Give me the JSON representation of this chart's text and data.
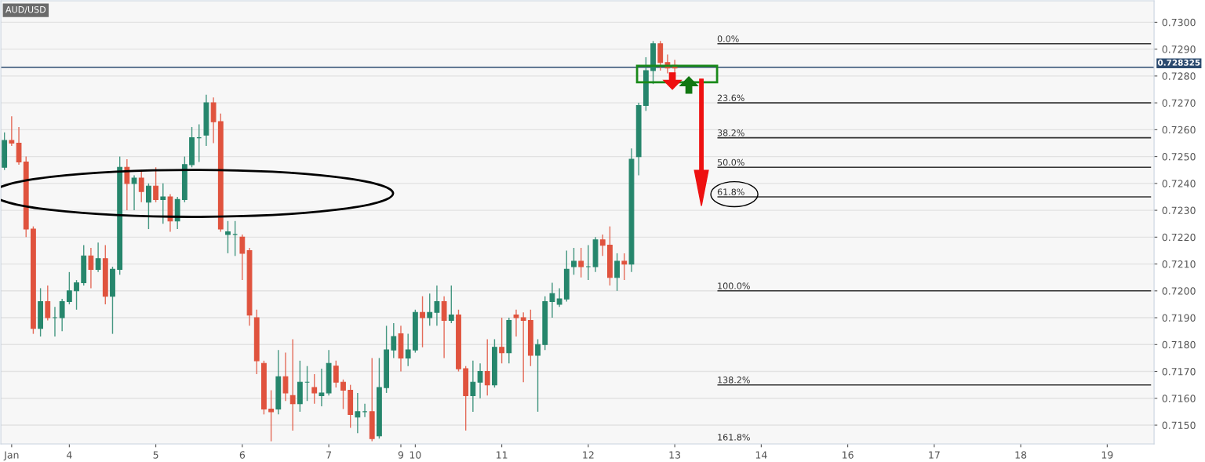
{
  "chart_data": {
    "type": "candlestick",
    "title": "AUD/USD",
    "categories": [
      null,
      "Jan",
      null,
      null,
      null,
      null,
      null,
      null,
      null,
      "4",
      null,
      null,
      null,
      null,
      null,
      null,
      null,
      null,
      null,
      null,
      null,
      "5",
      null,
      null,
      null,
      null,
      null,
      null,
      null,
      null,
      null,
      null,
      null,
      "6",
      null,
      null,
      null,
      null,
      null,
      null,
      null,
      null,
      null,
      null,
      null,
      "7",
      null,
      null,
      null,
      null,
      null,
      null,
      null,
      null,
      null,
      "9",
      null,
      "10",
      null,
      null,
      null,
      null,
      null,
      null,
      null,
      null,
      null,
      null,
      null,
      "11",
      null,
      null,
      null,
      null,
      null,
      null,
      null,
      null,
      null,
      null,
      null,
      "12",
      null,
      null,
      null,
      null,
      null,
      null,
      null,
      null,
      null,
      null,
      null,
      "13",
      null,
      null,
      null,
      null,
      null,
      null,
      null,
      null,
      null,
      null,
      null,
      "14",
      null,
      null,
      null,
      null,
      null,
      null,
      null,
      null,
      null,
      null,
      null,
      "16",
      null,
      null,
      null,
      null,
      null,
      null,
      null,
      null,
      null,
      null,
      null,
      "17",
      null,
      null,
      null,
      null,
      null,
      null,
      null,
      null,
      null,
      null,
      null,
      "18",
      null,
      null,
      null,
      null,
      null,
      null,
      null,
      null,
      null,
      null,
      null,
      "19",
      null,
      null,
      null,
      null,
      null,
      null
    ],
    "ohlc": [
      [
        0.7246,
        0.7259,
        0.7245,
        0.7256
      ],
      [
        0.7256,
        0.7265,
        0.7254,
        0.7255
      ],
      [
        0.7255,
        0.7261,
        0.7247,
        0.7248
      ],
      [
        0.7248,
        0.725,
        0.722,
        0.7223
      ],
      [
        0.7223,
        0.7224,
        0.7184,
        0.7186
      ],
      [
        0.7186,
        0.7201,
        0.7183,
        0.7196
      ],
      [
        0.7196,
        0.7202,
        0.7189,
        0.719
      ],
      [
        0.719,
        0.7194,
        0.7183,
        0.719
      ],
      [
        0.719,
        0.7197,
        0.7185,
        0.7196
      ],
      [
        0.7196,
        0.7207,
        0.7195,
        0.72
      ],
      [
        0.72,
        0.7204,
        0.7193,
        0.7203
      ],
      [
        0.7203,
        0.7217,
        0.7202,
        0.7213
      ],
      [
        0.7213,
        0.7216,
        0.7201,
        0.7208
      ],
      [
        0.7208,
        0.7218,
        0.7207,
        0.7212
      ],
      [
        0.7212,
        0.7217,
        0.7195,
        0.7198
      ],
      [
        0.7198,
        0.7209,
        0.7184,
        0.7208
      ],
      [
        0.7208,
        0.725,
        0.7206,
        0.7246
      ],
      [
        0.7246,
        0.7249,
        0.723,
        0.724
      ],
      [
        0.724,
        0.7243,
        0.723,
        0.7242
      ],
      [
        0.7242,
        0.7245,
        0.7233,
        0.7237
      ],
      [
        0.7233,
        0.724,
        0.7223,
        0.7239
      ],
      [
        0.7239,
        0.7246,
        0.7233,
        0.7234
      ],
      [
        0.7234,
        0.724,
        0.7225,
        0.7235
      ],
      [
        0.7235,
        0.7236,
        0.7222,
        0.7226
      ],
      [
        0.7226,
        0.7235,
        0.7223,
        0.7234
      ],
      [
        0.7234,
        0.725,
        0.7233,
        0.7247
      ],
      [
        0.7247,
        0.7261,
        0.7246,
        0.7257
      ],
      [
        0.7257,
        0.7262,
        0.7248,
        0.7257
      ],
      [
        0.7258,
        0.7273,
        0.7254,
        0.727
      ],
      [
        0.727,
        0.7272,
        0.7255,
        0.7263
      ],
      [
        0.7263,
        0.7266,
        0.7222,
        0.7223
      ],
      [
        0.7221,
        0.7226,
        0.7214,
        0.7222
      ],
      [
        0.7221,
        0.7226,
        0.7213,
        0.7221
      ],
      [
        0.722,
        0.7221,
        0.7204,
        0.7214
      ],
      [
        0.7215,
        0.7216,
        0.7187,
        0.7191
      ],
      [
        0.719,
        0.7193,
        0.7169,
        0.7174
      ],
      [
        0.7173,
        0.7174,
        0.7154,
        0.7156
      ],
      [
        0.7156,
        0.7163,
        0.7144,
        0.7155
      ],
      [
        0.7156,
        0.7178,
        0.7154,
        0.7168
      ],
      [
        0.7168,
        0.7177,
        0.7159,
        0.7162
      ],
      [
        0.7161,
        0.7182,
        0.7148,
        0.7158
      ],
      [
        0.7158,
        0.7174,
        0.7155,
        0.7166
      ],
      [
        0.7166,
        0.7172,
        0.7159,
        0.7166
      ],
      [
        0.7164,
        0.7169,
        0.7158,
        0.7162
      ],
      [
        0.7161,
        0.7171,
        0.7157,
        0.7162
      ],
      [
        0.7162,
        0.7178,
        0.7161,
        0.7173
      ],
      [
        0.7172,
        0.7174,
        0.7164,
        0.7166
      ],
      [
        0.7166,
        0.7167,
        0.7156,
        0.7163
      ],
      [
        0.7163,
        0.7165,
        0.7149,
        0.7154
      ],
      [
        0.7153,
        0.7162,
        0.7147,
        0.7155
      ],
      [
        0.7155,
        0.7158,
        0.7153,
        0.7155
      ],
      [
        0.7155,
        0.7175,
        0.7144,
        0.7145
      ],
      [
        0.7146,
        0.7175,
        0.7145,
        0.7164
      ],
      [
        0.7164,
        0.7187,
        0.7162,
        0.7178
      ],
      [
        0.7178,
        0.7188,
        0.7175,
        0.7183
      ],
      [
        0.7184,
        0.7187,
        0.717,
        0.7175
      ],
      [
        0.7175,
        0.7184,
        0.7172,
        0.7178
      ],
      [
        0.7178,
        0.7193,
        0.7177,
        0.7192
      ],
      [
        0.7192,
        0.7198,
        0.7179,
        0.719
      ],
      [
        0.719,
        0.7199,
        0.7187,
        0.7192
      ],
      [
        0.7192,
        0.7202,
        0.7187,
        0.7196
      ],
      [
        0.7196,
        0.7198,
        0.7175,
        0.7189
      ],
      [
        0.7189,
        0.7202,
        0.7188,
        0.7191
      ],
      [
        0.7191,
        0.7193,
        0.717,
        0.7171
      ],
      [
        0.7171,
        0.7172,
        0.7148,
        0.7161
      ],
      [
        0.7161,
        0.7174,
        0.7155,
        0.7166
      ],
      [
        0.7166,
        0.7173,
        0.716,
        0.717
      ],
      [
        0.717,
        0.7182,
        0.7161,
        0.7165
      ],
      [
        0.7165,
        0.7182,
        0.7164,
        0.7179
      ],
      [
        0.7179,
        0.719,
        0.7173,
        0.7177
      ],
      [
        0.7177,
        0.719,
        0.7173,
        0.7189
      ],
      [
        0.7191,
        0.7193,
        0.7183,
        0.719
      ],
      [
        0.719,
        0.7192,
        0.7166,
        0.7189
      ],
      [
        0.7189,
        0.7193,
        0.7172,
        0.7176
      ],
      [
        0.7176,
        0.7182,
        0.7155,
        0.718
      ],
      [
        0.718,
        0.7198,
        0.7178,
        0.7196
      ],
      [
        0.7196,
        0.7203,
        0.719,
        0.7199
      ],
      [
        0.7195,
        0.7201,
        0.7194,
        0.7197
      ],
      [
        0.7197,
        0.7215,
        0.7196,
        0.7208
      ],
      [
        0.7209,
        0.7216,
        0.7206,
        0.7211
      ],
      [
        0.7211,
        0.7216,
        0.7205,
        0.7209
      ],
      [
        0.7209,
        0.7217,
        0.7204,
        0.7209
      ],
      [
        0.7209,
        0.722,
        0.7207,
        0.7219
      ],
      [
        0.7219,
        0.7221,
        0.7213,
        0.7217
      ],
      [
        0.7217,
        0.7224,
        0.7202,
        0.7205
      ],
      [
        0.7205,
        0.7214,
        0.72,
        0.7211
      ],
      [
        0.7211,
        0.7214,
        0.7204,
        0.721
      ],
      [
        0.721,
        0.7253,
        0.7207,
        0.7249
      ],
      [
        0.725,
        0.727,
        0.7243,
        0.7269
      ],
      [
        0.7269,
        0.7287,
        0.7267,
        0.7282
      ],
      [
        0.7282,
        0.7293,
        0.7277,
        0.7292
      ],
      [
        0.7292,
        0.7293,
        0.7282,
        0.7285
      ],
      [
        0.7285,
        0.7288,
        0.7281,
        0.7283
      ],
      [
        0.7284,
        0.7286,
        0.7281,
        0.7283
      ],
      null,
      null,
      null,
      null,
      null,
      null,
      null,
      null,
      null,
      null,
      null,
      null,
      null,
      null,
      null,
      null,
      null,
      null,
      null,
      null,
      null,
      null,
      null,
      null,
      null,
      null,
      null,
      null,
      null,
      null,
      null,
      null,
      null,
      null,
      null,
      null,
      null,
      null,
      null,
      null,
      null,
      null,
      null,
      null,
      null,
      null,
      null,
      null,
      null,
      null,
      null,
      null,
      null,
      null,
      null,
      null,
      null,
      null,
      null,
      null,
      null,
      null,
      null,
      null,
      null,
      null
    ],
    "colors": [
      "#26866c",
      "#e0533e",
      "#e0533e",
      "#e0533e",
      "#e0533e",
      "#26866c",
      "#e0533e",
      "#26866c",
      "#26866c",
      "#26866c",
      "#26866c",
      "#26866c",
      "#e0533e",
      "#26866c",
      "#e0533e",
      "#26866c",
      "#26866c",
      "#e0533e",
      "#26866c",
      "#e0533e",
      "#26866c",
      "#e0533e",
      "#26866c",
      "#e0533e",
      "#26866c",
      "#26866c",
      "#26866c",
      "#26866c",
      "#26866c",
      "#e0533e",
      "#e0533e",
      "#26866c",
      "#26866c",
      "#e0533e",
      "#e0533e",
      "#e0533e",
      "#e0533e",
      "#e0533e",
      "#26866c",
      "#e0533e",
      "#e0533e",
      "#26866c",
      "#26866c",
      "#e0533e",
      "#26866c",
      "#26866c",
      "#e0533e",
      "#e0533e",
      "#e0533e",
      "#26866c",
      "#26866c",
      "#e0533e",
      "#26866c",
      "#26866c",
      "#26866c",
      "#e0533e",
      "#26866c",
      "#26866c",
      "#e0533e",
      "#26866c",
      "#26866c",
      "#e0533e",
      "#26866c",
      "#e0533e",
      "#e0533e",
      "#26866c",
      "#26866c",
      "#e0533e",
      "#26866c",
      "#e0533e",
      "#26866c",
      "#e0533e",
      "#e0533e",
      "#e0533e",
      "#26866c",
      "#26866c",
      "#26866c",
      "#26866c",
      "#26866c",
      "#26866c",
      "#e0533e",
      "#26866c",
      "#26866c",
      "#e0533e",
      "#e0533e",
      "#26866c",
      "#e0533e",
      "#26866c",
      "#26866c",
      "#26866c",
      "#26866c",
      "#e0533e",
      "#e0533e",
      "#e0533e",
      null,
      null,
      null,
      null,
      null,
      null,
      null,
      null,
      null,
      null,
      null,
      null,
      null,
      null,
      null,
      null,
      null,
      null,
      null,
      null,
      null,
      null,
      null,
      null,
      null,
      null,
      null,
      null,
      null,
      null,
      null,
      null,
      null,
      null,
      null,
      null,
      null,
      null,
      null,
      null,
      null,
      null,
      null,
      null,
      null,
      null,
      null,
      null,
      null,
      null,
      null,
      null,
      null,
      null,
      null,
      null,
      null,
      null,
      null,
      null,
      null,
      null,
      null,
      null,
      null,
      null
    ],
    "series": [
      {
        "type": "line",
        "color": "#333333",
        "values": [
          null,
          null,
          null,
          null,
          null,
          null,
          null,
          null,
          null,
          null,
          null,
          null,
          null,
          null,
          null,
          null,
          null,
          null,
          null,
          null,
          null,
          null,
          null,
          null,
          null,
          null,
          null,
          null,
          null,
          null,
          null,
          null,
          null,
          null,
          null,
          null,
          null,
          null,
          null,
          null,
          null,
          null,
          null,
          null,
          null,
          null,
          null,
          null,
          null,
          null,
          null,
          null,
          null,
          null,
          null,
          null,
          null,
          null,
          null,
          null,
          null,
          null,
          null,
          null,
          null,
          null,
          null,
          null,
          null,
          null,
          null,
          null,
          null,
          null,
          null,
          null,
          null,
          null,
          null,
          null,
          null,
          null,
          null,
          null,
          null,
          null,
          null,
          null,
          null,
          null,
          null,
          null,
          null,
          null,
          null,
          null,
          null,
          null,
          null,
          0.7292,
          0.7292,
          0.7292,
          0.7292,
          0.7292,
          0.7292,
          0.7292,
          0.7292,
          0.7292,
          0.7292,
          0.7292,
          0.7292,
          0.7292,
          0.7292,
          0.7292,
          0.7292,
          0.7292,
          0.7292,
          0.7292,
          0.7292,
          0.7292,
          0.7292,
          0.7292,
          0.7292,
          0.7292,
          0.7292,
          0.7292,
          0.7292,
          0.7292,
          0.7292,
          0.7292,
          0.7292,
          0.7292,
          0.7292,
          0.7292,
          0.7292,
          0.7292,
          0.7292,
          0.7292,
          0.7292,
          0.7292,
          0.7292,
          0.7292,
          0.7292,
          0.7292,
          0.7292,
          0.7292,
          0.7292,
          0.7292,
          0.7292,
          0.7292,
          0.7292,
          0.7292,
          0.7292,
          0.7292,
          0.7292,
          0.7292,
          0.7292,
          0.7292,
          0.7292,
          0.7292
        ]
      },
      {
        "type": "line",
        "color": "#333333",
        "values": [
          null,
          null,
          null,
          null,
          null,
          null,
          null,
          null,
          null,
          null,
          null,
          null,
          null,
          null,
          null,
          null,
          null,
          null,
          null,
          null,
          null,
          null,
          null,
          null,
          null,
          null,
          null,
          null,
          null,
          null,
          null,
          null,
          null,
          null,
          null,
          null,
          null,
          null,
          null,
          null,
          null,
          null,
          null,
          null,
          null,
          null,
          null,
          null,
          null,
          null,
          null,
          null,
          null,
          null,
          null,
          null,
          null,
          null,
          null,
          null,
          null,
          null,
          null,
          null,
          null,
          null,
          null,
          null,
          null,
          null,
          null,
          null,
          null,
          null,
          null,
          null,
          null,
          null,
          null,
          null,
          null,
          null,
          null,
          null,
          null,
          null,
          null,
          null,
          null,
          null,
          null,
          null,
          null,
          null,
          null,
          null,
          null,
          null,
          null,
          0.727,
          0.727,
          0.727,
          0.727,
          0.727,
          0.727,
          0.727,
          0.727,
          0.727,
          0.727,
          0.727,
          0.727,
          0.727,
          0.727,
          0.727,
          0.727,
          0.727,
          0.727,
          0.727,
          0.727,
          0.727,
          0.727,
          0.727,
          0.727,
          0.727,
          0.727,
          0.727,
          0.727,
          0.727,
          0.727,
          0.727,
          0.727,
          0.727,
          0.727,
          0.727,
          0.727,
          0.727,
          0.727,
          0.727,
          0.727,
          0.727,
          0.727,
          0.727,
          0.727,
          0.727,
          0.727,
          0.727,
          0.727,
          0.727,
          0.727,
          0.727,
          0.727,
          0.727,
          0.727,
          0.727,
          0.727,
          0.727,
          0.727,
          0.727,
          0.727,
          0.727
        ]
      },
      {
        "type": "line",
        "color": "#333333",
        "values": [
          null,
          null,
          null,
          null,
          null,
          null,
          null,
          null,
          null,
          null,
          null,
          null,
          null,
          null,
          null,
          null,
          null,
          null,
          null,
          null,
          null,
          null,
          null,
          null,
          null,
          null,
          null,
          null,
          null,
          null,
          null,
          null,
          null,
          null,
          null,
          null,
          null,
          null,
          null,
          null,
          null,
          null,
          null,
          null,
          null,
          null,
          null,
          null,
          null,
          null,
          null,
          null,
          null,
          null,
          null,
          null,
          null,
          null,
          null,
          null,
          null,
          null,
          null,
          null,
          null,
          null,
          null,
          null,
          null,
          null,
          null,
          null,
          null,
          null,
          null,
          null,
          null,
          null,
          null,
          null,
          null,
          null,
          null,
          null,
          null,
          null,
          null,
          null,
          null,
          null,
          null,
          null,
          null,
          null,
          null,
          null,
          null,
          null,
          null,
          0.7257,
          0.7257,
          0.7257,
          0.7257,
          0.7257,
          0.7257,
          0.7257,
          0.7257,
          0.7257,
          0.7257,
          0.7257,
          0.7257,
          0.7257,
          0.7257,
          0.7257,
          0.7257,
          0.7257,
          0.7257,
          0.7257,
          0.7257,
          0.7257,
          0.7257,
          0.7257,
          0.7257,
          0.7257,
          0.7257,
          0.7257,
          0.7257,
          0.7257,
          0.7257,
          0.7257,
          0.7257,
          0.7257,
          0.7257,
          0.7257,
          0.7257,
          0.7257,
          0.7257,
          0.7257,
          0.7257,
          0.7257,
          0.7257,
          0.7257,
          0.7257,
          0.7257,
          0.7257,
          0.7257,
          0.7257,
          0.7257,
          0.7257,
          0.7257,
          0.7257,
          0.7257,
          0.7257,
          0.7257,
          0.7257,
          0.7257,
          0.7257,
          0.7257,
          0.7257,
          0.7257
        ]
      },
      {
        "type": "line",
        "color": "#333333",
        "values": [
          null,
          null,
          null,
          null,
          null,
          null,
          null,
          null,
          null,
          null,
          null,
          null,
          null,
          null,
          null,
          null,
          null,
          null,
          null,
          null,
          null,
          null,
          null,
          null,
          null,
          null,
          null,
          null,
          null,
          null,
          null,
          null,
          null,
          null,
          null,
          null,
          null,
          null,
          null,
          null,
          null,
          null,
          null,
          null,
          null,
          null,
          null,
          null,
          null,
          null,
          null,
          null,
          null,
          null,
          null,
          null,
          null,
          null,
          null,
          null,
          null,
          null,
          null,
          null,
          null,
          null,
          null,
          null,
          null,
          null,
          null,
          null,
          null,
          null,
          null,
          null,
          null,
          null,
          null,
          null,
          null,
          null,
          null,
          null,
          null,
          null,
          null,
          null,
          null,
          null,
          null,
          null,
          null,
          null,
          null,
          null,
          null,
          null,
          null,
          0.7246,
          0.7246,
          0.7246,
          0.7246,
          0.7246,
          0.7246,
          0.7246,
          0.7246,
          0.7246,
          0.7246,
          0.7246,
          0.7246,
          0.7246,
          0.7246,
          0.7246,
          0.7246,
          0.7246,
          0.7246,
          0.7246,
          0.7246,
          0.7246,
          0.7246,
          0.7246,
          0.7246,
          0.7246,
          0.7246,
          0.7246,
          0.7246,
          0.7246,
          0.7246,
          0.7246,
          0.7246,
          0.7246,
          0.7246,
          0.7246,
          0.7246,
          0.7246,
          0.7246,
          0.7246,
          0.7246,
          0.7246,
          0.7246,
          0.7246,
          0.7246,
          0.7246,
          0.7246,
          0.7246,
          0.7246,
          0.7246,
          0.7246,
          0.7246,
          0.7246,
          0.7246,
          0.7246,
          0.7246,
          0.7246,
          0.7246,
          0.7246,
          0.7246,
          0.7246,
          0.7246
        ]
      },
      {
        "type": "line",
        "color": "#333333",
        "values": [
          null,
          null,
          null,
          null,
          null,
          null,
          null,
          null,
          null,
          null,
          null,
          null,
          null,
          null,
          null,
          null,
          null,
          null,
          null,
          null,
          null,
          null,
          null,
          null,
          null,
          null,
          null,
          null,
          null,
          null,
          null,
          null,
          null,
          null,
          null,
          null,
          null,
          null,
          null,
          null,
          null,
          null,
          null,
          null,
          null,
          null,
          null,
          null,
          null,
          null,
          null,
          null,
          null,
          null,
          null,
          null,
          null,
          null,
          null,
          null,
          null,
          null,
          null,
          null,
          null,
          null,
          null,
          null,
          null,
          null,
          null,
          null,
          null,
          null,
          null,
          null,
          null,
          null,
          null,
          null,
          null,
          null,
          null,
          null,
          null,
          null,
          null,
          null,
          null,
          null,
          null,
          null,
          null,
          null,
          null,
          null,
          null,
          null,
          null,
          0.7235,
          0.7235,
          0.7235,
          0.7235,
          0.7235,
          0.7235,
          0.7235,
          0.7235,
          0.7235,
          0.7235,
          0.7235,
          0.7235,
          0.7235,
          0.7235,
          0.7235,
          0.7235,
          0.7235,
          0.7235,
          0.7235,
          0.7235,
          0.7235,
          0.7235,
          0.7235,
          0.7235,
          0.7235,
          0.7235,
          0.7235,
          0.7235,
          0.7235,
          0.7235,
          0.7235,
          0.7235,
          0.7235,
          0.7235,
          0.7235,
          0.7235,
          0.7235,
          0.7235,
          0.7235,
          0.7235,
          0.7235,
          0.7235,
          0.7235,
          0.7235,
          0.7235,
          0.7235,
          0.7235,
          0.7235,
          0.7235,
          0.7235,
          0.7235,
          0.7235,
          0.7235,
          0.7235,
          0.7235,
          0.7235,
          0.7235,
          0.7235,
          0.7235,
          0.7235,
          0.7235
        ]
      },
      {
        "type": "line",
        "color": "#333333",
        "values": [
          null,
          null,
          null,
          null,
          null,
          null,
          null,
          null,
          null,
          null,
          null,
          null,
          null,
          null,
          null,
          null,
          null,
          null,
          null,
          null,
          null,
          null,
          null,
          null,
          null,
          null,
          null,
          null,
          null,
          null,
          null,
          null,
          null,
          null,
          null,
          null,
          null,
          null,
          null,
          null,
          null,
          null,
          null,
          null,
          null,
          null,
          null,
          null,
          null,
          null,
          null,
          null,
          null,
          null,
          null,
          null,
          null,
          null,
          null,
          null,
          null,
          null,
          null,
          null,
          null,
          null,
          null,
          null,
          null,
          null,
          null,
          null,
          null,
          null,
          null,
          null,
          null,
          null,
          null,
          null,
          null,
          null,
          null,
          null,
          null,
          null,
          null,
          null,
          null,
          null,
          null,
          null,
          null,
          null,
          null,
          null,
          null,
          null,
          null,
          0.72,
          0.72,
          0.72,
          0.72,
          0.72,
          0.72,
          0.72,
          0.72,
          0.72,
          0.72,
          0.72,
          0.72,
          0.72,
          0.72,
          0.72,
          0.72,
          0.72,
          0.72,
          0.72,
          0.72,
          0.72,
          0.72,
          0.72,
          0.72,
          0.72,
          0.72,
          0.72,
          0.72,
          0.72,
          0.72,
          0.72,
          0.72,
          0.72,
          0.72,
          0.72,
          0.72,
          0.72,
          0.72,
          0.72,
          0.72,
          0.72,
          0.72,
          0.72,
          0.72,
          0.72,
          0.72,
          0.72,
          0.72,
          0.72,
          0.72,
          0.72,
          0.72,
          0.72,
          0.72,
          0.72,
          0.72,
          0.72,
          0.72,
          0.72,
          0.72,
          0.72
        ]
      },
      {
        "type": "line",
        "color": "#333333",
        "values": [
          null,
          null,
          null,
          null,
          null,
          null,
          null,
          null,
          null,
          null,
          null,
          null,
          null,
          null,
          null,
          null,
          null,
          null,
          null,
          null,
          null,
          null,
          null,
          null,
          null,
          null,
          null,
          null,
          null,
          null,
          null,
          null,
          null,
          null,
          null,
          null,
          null,
          null,
          null,
          null,
          null,
          null,
          null,
          null,
          null,
          null,
          null,
          null,
          null,
          null,
          null,
          null,
          null,
          null,
          null,
          null,
          null,
          null,
          null,
          null,
          null,
          null,
          null,
          null,
          null,
          null,
          null,
          null,
          null,
          null,
          null,
          null,
          null,
          null,
          null,
          null,
          null,
          null,
          null,
          null,
          null,
          null,
          null,
          null,
          null,
          null,
          null,
          null,
          null,
          null,
          null,
          null,
          null,
          null,
          null,
          null,
          null,
          null,
          null,
          0.7165,
          0.7165,
          0.7165,
          0.7165,
          0.7165,
          0.7165,
          0.7165,
          0.7165,
          0.7165,
          0.7165,
          0.7165,
          0.7165,
          0.7165,
          0.7165,
          0.7165,
          0.7165,
          0.7165,
          0.7165,
          0.7165,
          0.7165,
          0.7165,
          0.7165,
          0.7165,
          0.7165,
          0.7165,
          0.7165,
          0.7165,
          0.7165,
          0.7165,
          0.7165,
          0.7165,
          0.7165,
          0.7165,
          0.7165,
          0.7165,
          0.7165,
          0.7165,
          0.7165,
          0.7165,
          0.7165,
          0.7165,
          0.7165,
          0.7165,
          0.7165,
          0.7165,
          0.7165,
          0.7165,
          0.7165,
          0.7165,
          0.7165,
          0.7165,
          0.7165,
          0.7165,
          0.7165,
          0.7165,
          0.7165,
          0.7165,
          0.7165,
          0.7165,
          0.7165,
          0.7165
        ]
      }
    ],
    "annotations": [
      {
        "text": "0.0%",
        "y": 0.7292
      },
      {
        "text": "23.6%",
        "y": 0.727
      },
      {
        "text": "38.2%",
        "y": 0.7257
      },
      {
        "text": "50.0%",
        "y": 0.7246
      },
      {
        "text": "61.8%",
        "y": 0.7235
      },
      {
        "text": "100.0%",
        "y": 0.72
      },
      {
        "text": "138.2%",
        "y": 0.7165
      },
      "161.8%"
    ],
    "ref_lines": [
      {
        "axis": "y",
        "value": 0.728325,
        "label": "0.728325",
        "color": "#2b4a6f"
      }
    ],
    "ylim": [
      0.7143,
      0.7308
    ],
    "yticks": [
      {
        "value": 0.715,
        "label": "0.7150"
      },
      {
        "value": 0.716,
        "label": "0.7160"
      },
      {
        "value": 0.717,
        "label": "0.7170"
      },
      {
        "value": 0.718,
        "label": "0.7180"
      },
      {
        "value": 0.719,
        "label": "0.7190"
      },
      {
        "value": 0.72,
        "label": "0.7200"
      },
      {
        "value": 0.721,
        "label": "0.7210"
      },
      {
        "value": 0.722,
        "label": "0.7220"
      },
      {
        "value": 0.723,
        "label": "0.7230"
      },
      {
        "value": 0.724,
        "label": "0.7240"
      },
      {
        "value": 0.725,
        "label": "0.7250"
      },
      {
        "value": 0.726,
        "label": "0.7260"
      },
      {
        "value": 0.727,
        "label": "0.7270"
      },
      {
        "value": 0.728,
        "label": "0.7280"
      },
      {
        "value": 0.729,
        "label": "0.7290"
      },
      {
        "value": 0.73,
        "label": "0.7300"
      }
    ],
    "grid": "y"
  }
}
